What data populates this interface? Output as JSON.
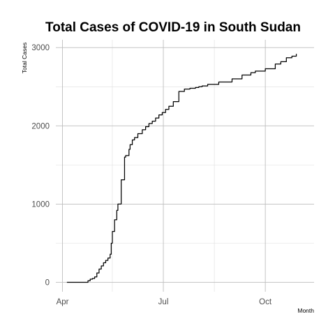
{
  "chart_data": {
    "type": "line",
    "title": "Total Cases of COVID-19 in South Sudan",
    "xlabel": "Month",
    "ylabel": "Total Cases",
    "x_tick_labels": [
      "Apr",
      "Jul",
      "Oct"
    ],
    "x_tick_dates": [
      "2020-04-01",
      "2020-07-01",
      "2020-10-01"
    ],
    "x_minor_dates": [
      "2020-05-16",
      "2020-08-16"
    ],
    "xlim": [
      "2020-03-26",
      "2020-11-14"
    ],
    "ylim": [
      -120,
      3100
    ],
    "y_ticks": [
      0,
      1000,
      2000,
      3000
    ],
    "y_tick_labels": [
      "0",
      "1000",
      "2000",
      "3000"
    ],
    "y_minor": [
      500,
      1500,
      2500
    ],
    "grid": true,
    "legend": "none",
    "series": [
      {
        "color": "#000000",
        "x": [
          "2020-04-05",
          "2020-04-23",
          "2020-04-24",
          "2020-04-26",
          "2020-04-28",
          "2020-04-30",
          "2020-05-02",
          "2020-05-04",
          "2020-05-06",
          "2020-05-08",
          "2020-05-10",
          "2020-05-12",
          "2020-05-14",
          "2020-05-15",
          "2020-05-16",
          "2020-05-18",
          "2020-05-20",
          "2020-05-21",
          "2020-05-22",
          "2020-05-24",
          "2020-05-27",
          "2020-05-28",
          "2020-05-31",
          "2020-06-01",
          "2020-06-03",
          "2020-06-05",
          "2020-06-08",
          "2020-06-12",
          "2020-06-15",
          "2020-06-18",
          "2020-06-21",
          "2020-06-24",
          "2020-06-27",
          "2020-06-30",
          "2020-07-03",
          "2020-07-06",
          "2020-07-10",
          "2020-07-15",
          "2020-07-20",
          "2020-07-25",
          "2020-07-30",
          "2020-08-02",
          "2020-08-05",
          "2020-08-10",
          "2020-08-20",
          "2020-09-01",
          "2020-09-10",
          "2020-09-18",
          "2020-09-22",
          "2020-10-01",
          "2020-10-10",
          "2020-10-15",
          "2020-10-20",
          "2020-10-25",
          "2020-10-29"
        ],
        "y": [
          0,
          0,
          20,
          40,
          50,
          70,
          120,
          170,
          210,
          250,
          280,
          310,
          360,
          500,
          650,
          800,
          920,
          1000,
          1000,
          1310,
          1600,
          1620,
          1700,
          1760,
          1820,
          1850,
          1900,
          1950,
          1990,
          2030,
          2060,
          2100,
          2140,
          2170,
          2210,
          2250,
          2310,
          2440,
          2470,
          2480,
          2490,
          2500,
          2510,
          2530,
          2560,
          2600,
          2650,
          2680,
          2700,
          2730,
          2790,
          2820,
          2870,
          2890,
          2920
        ]
      }
    ]
  }
}
